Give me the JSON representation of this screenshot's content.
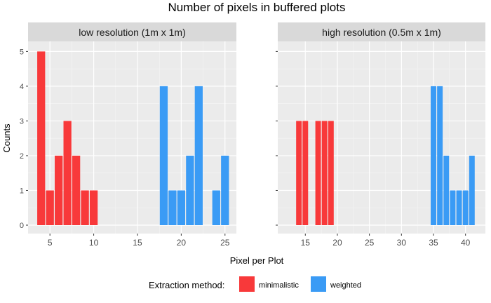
{
  "chart_data": {
    "type": "bar",
    "title": "Number of pixels in buffered plots",
    "xlabel": "Pixel per Plot",
    "ylabel": "Counts",
    "ylim": [
      0,
      5.25
    ],
    "yticks": [
      0,
      1,
      2,
      3,
      4,
      5
    ],
    "grid": true,
    "legend": {
      "title": "Extraction method:",
      "position": "bottom",
      "entries": [
        {
          "name": "minimalistic",
          "color": "#f8393a"
        },
        {
          "name": "weighted",
          "color": "#3a9bf5"
        }
      ]
    },
    "panels": [
      {
        "strip": "low resolution (1m x 1m)",
        "xlim": [
          2.5,
          26.3
        ],
        "xticks": [
          5,
          10,
          15,
          20,
          25
        ],
        "series": [
          {
            "name": "minimalistic",
            "x": [
              4,
              5,
              6,
              7,
              8,
              9,
              10
            ],
            "values": [
              5,
              1,
              2,
              3,
              2,
              1,
              1
            ]
          },
          {
            "name": "weighted",
            "x": [
              18,
              19,
              20,
              21,
              22,
              24,
              25
            ],
            "values": [
              4,
              1,
              1,
              2,
              4,
              1,
              2
            ]
          }
        ]
      },
      {
        "strip": "high resolution (0.5m x 1m)",
        "xlim": [
          10.7,
          43.1
        ],
        "xticks": [
          15,
          20,
          25,
          30,
          35,
          40
        ],
        "series": [
          {
            "name": "minimalistic",
            "x": [
              14,
              15,
              17,
              18,
              19
            ],
            "values": [
              3,
              3,
              3,
              3,
              3
            ]
          },
          {
            "name": "weighted",
            "x": [
              35,
              36,
              37,
              38,
              39,
              40,
              41
            ],
            "values": [
              4,
              4,
              2,
              1,
              1,
              1,
              2
            ]
          }
        ]
      }
    ]
  }
}
